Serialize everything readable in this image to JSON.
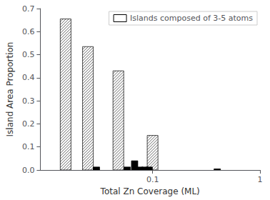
{
  "chart_data": {
    "type": "bar",
    "xlabel": "Total Zn Coverage (ML)",
    "ylabel": "Island Area Proportion",
    "log": "x",
    "xlim": [
      0.009,
      1.0
    ],
    "ylim": [
      0.0,
      0.7
    ],
    "xticks": [
      0.1,
      1
    ],
    "yticks": [
      {
        "value": 0.0,
        "label": "0.0"
      },
      0.1,
      0.2,
      0.3,
      0.4,
      0.5,
      0.6,
      0.7
    ],
    "grid": false,
    "legend": "upper right",
    "series": [
      {
        "name": "Islands composed of 3-5 atoms",
        "color": "#ffffff",
        "x": [
          0.0155,
          0.025,
          0.048,
          0.1
        ],
        "values": [
          0.655,
          0.535,
          0.43,
          0.15
        ]
      },
      {
        "color": "#000000",
        "x": [
          0.03,
          0.058,
          0.068,
          0.076,
          0.085,
          0.093,
          0.4
        ],
        "values": [
          0.013,
          0.013,
          0.04,
          0.013,
          0.013,
          0.013,
          0.005
        ]
      }
    ]
  }
}
